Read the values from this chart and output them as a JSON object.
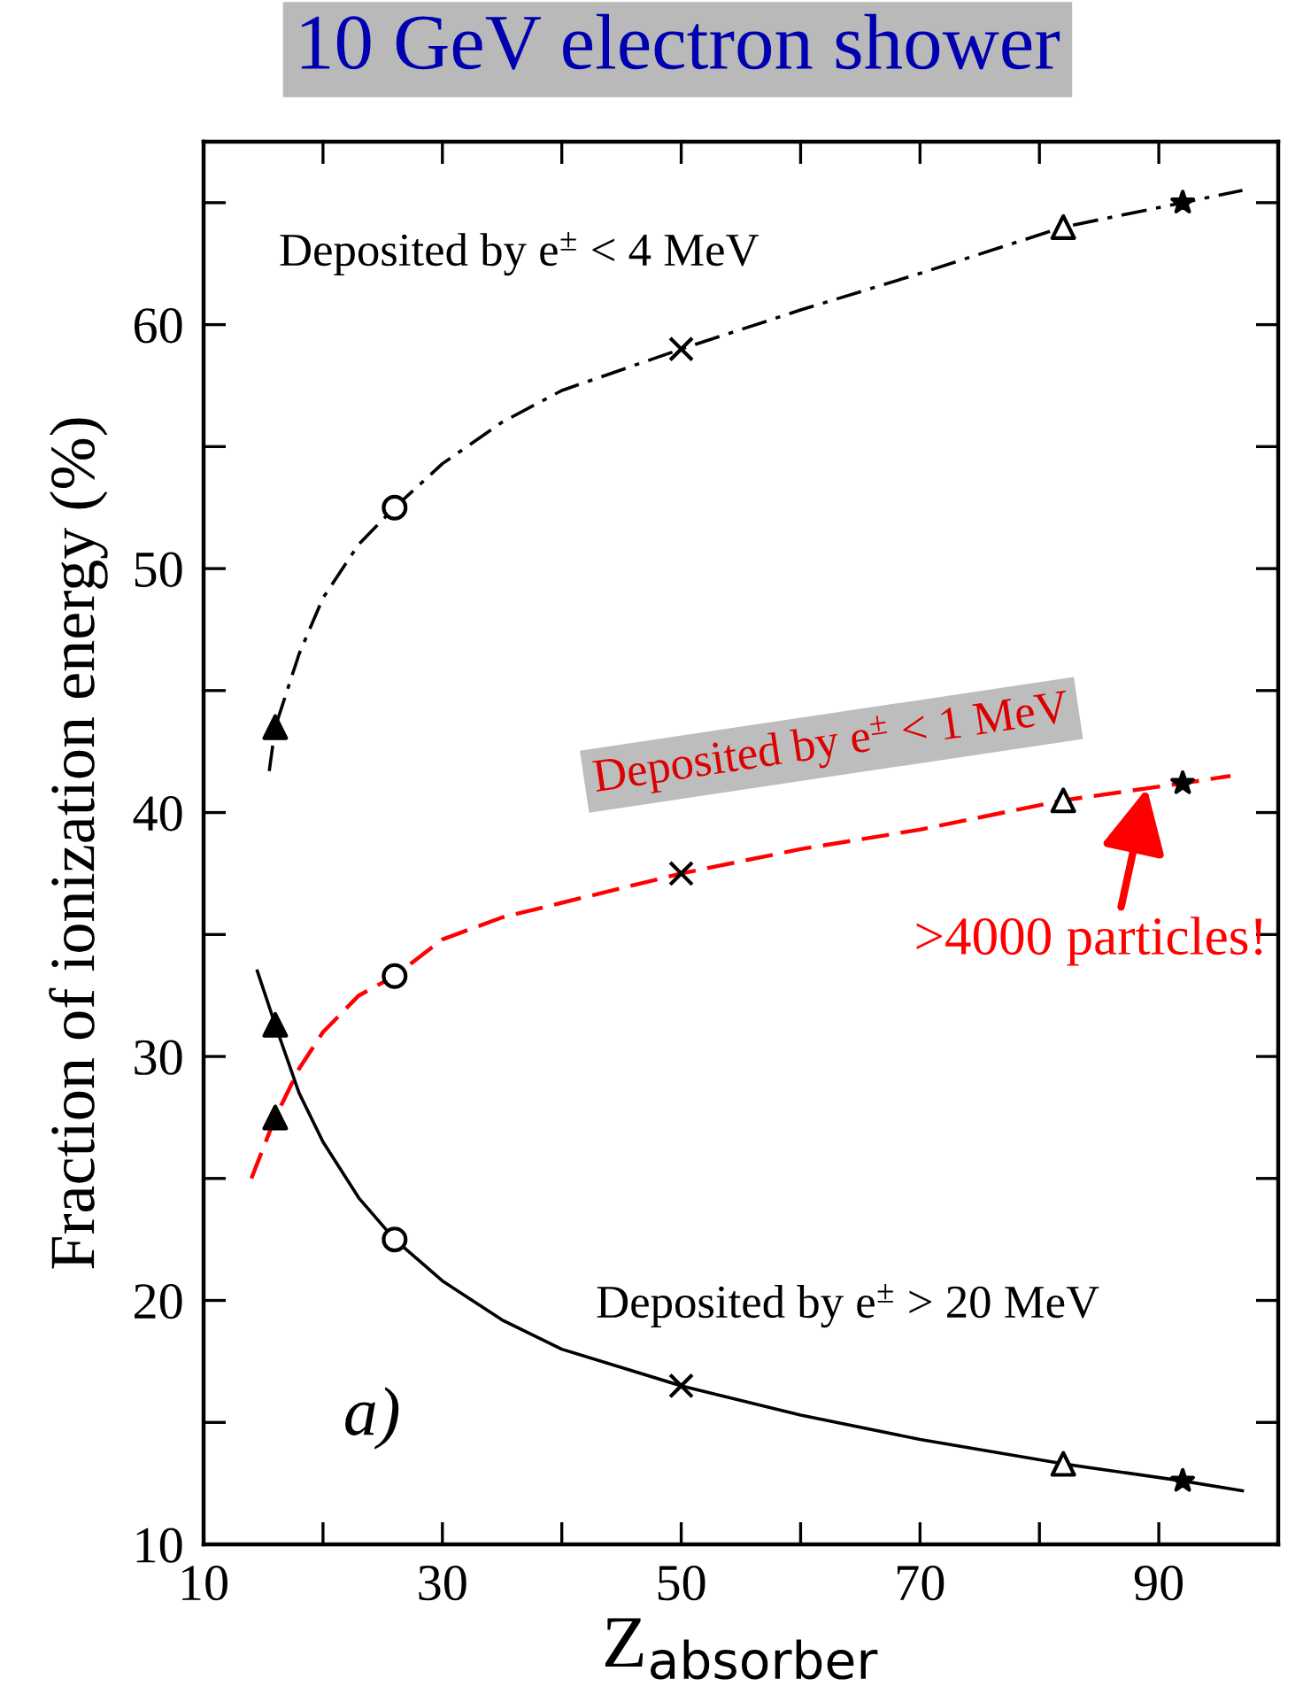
{
  "chart_data": {
    "type": "line",
    "title": "10 GeV electron shower",
    "xlabel": "Z$_{absorber}$",
    "ylabel": "Fraction of ionization energy (%)",
    "xlim": [
      10,
      100
    ],
    "ylim": [
      10,
      67.5
    ],
    "xticks": [
      10,
      {
        "value": 20,
        "label": null
      },
      30,
      {
        "value": 40,
        "label": null
      },
      50,
      {
        "value": 60,
        "label": null
      },
      70,
      {
        "value": 80,
        "label": null
      },
      90,
      {
        "value": 100,
        "label": null
      }
    ],
    "yticks": [
      10,
      {
        "value": 15,
        "label": null
      },
      20,
      {
        "value": 25,
        "label": null
      },
      30,
      {
        "value": 35,
        "label": null
      },
      40,
      {
        "value": 45,
        "label": null
      },
      50,
      {
        "value": 55,
        "label": null
      },
      60,
      {
        "value": 65,
        "label": null
      }
    ],
    "grid": false,
    "legend": false,
    "series": [
      {
        "color": "#000000",
        "line_style": "dashdot",
        "marker": "none",
        "x": [
          15.5,
          16,
          18,
          20,
          23,
          26,
          30,
          35,
          40,
          50,
          60,
          70,
          82,
          92,
          97
        ],
        "values": [
          41.7,
          43.5,
          46.5,
          48.8,
          51,
          52.5,
          54.3,
          56,
          57.3,
          59,
          60.6,
          62.1,
          64,
          65,
          65.5
        ]
      },
      {
        "color": "#ff0000",
        "line_style": "dashed",
        "marker": "none",
        "x": [
          14,
          16,
          18,
          20,
          23,
          26,
          30,
          35,
          40,
          50,
          60,
          70,
          82,
          92,
          96
        ],
        "values": [
          25,
          27.5,
          29.5,
          31,
          32.5,
          33.3,
          34.8,
          35.7,
          36.3,
          37.5,
          38.5,
          39.3,
          40.5,
          41.2,
          41.5
        ]
      },
      {
        "color": "#000000",
        "line_style": "solid",
        "marker": "none",
        "x": [
          14.5,
          16,
          18,
          20,
          23,
          26,
          30,
          35,
          40,
          50,
          60,
          70,
          82,
          92,
          97
        ],
        "values": [
          33.5,
          31.3,
          28.5,
          26.5,
          24.2,
          22.5,
          20.8,
          19.2,
          18,
          16.5,
          15.3,
          14.3,
          13.3,
          12.6,
          12.2
        ]
      },
      {
        "type": "scatter",
        "color": "#000000",
        "marker": "triangle",
        "x": [
          16,
          16,
          16
        ],
        "values": [
          43.5,
          27.5,
          31.3
        ]
      },
      {
        "type": "scatter",
        "color": "#ffffff",
        "marker": "circle",
        "x": [
          26,
          26,
          26
        ],
        "values": [
          52.5,
          33.3,
          22.5
        ]
      },
      {
        "type": "scatter",
        "color": "#000000",
        "marker": "cross",
        "x": [
          50,
          50,
          50
        ],
        "values": [
          59,
          37.5,
          16.5
        ]
      },
      {
        "type": "scatter",
        "color": "#ffffff",
        "marker": "triangle",
        "x": [
          82,
          82,
          82
        ],
        "values": [
          64,
          40.5,
          13.3
        ]
      },
      {
        "type": "scatter",
        "color": "#000000",
        "marker": "star",
        "x": [
          92,
          92,
          92
        ],
        "values": [
          65,
          41.2,
          12.6
        ]
      }
    ],
    "annotations": [
      "Deposited by e$^{±}$ < 4 MeV",
      "Deposited by e$^{±}$ < 1 MeV",
      "Deposited by e$^{±}$ > 20 MeV",
      "a)",
      {
        "text": ">4000 particles!",
        "x": 89,
        "y": 41
      }
    ]
  }
}
